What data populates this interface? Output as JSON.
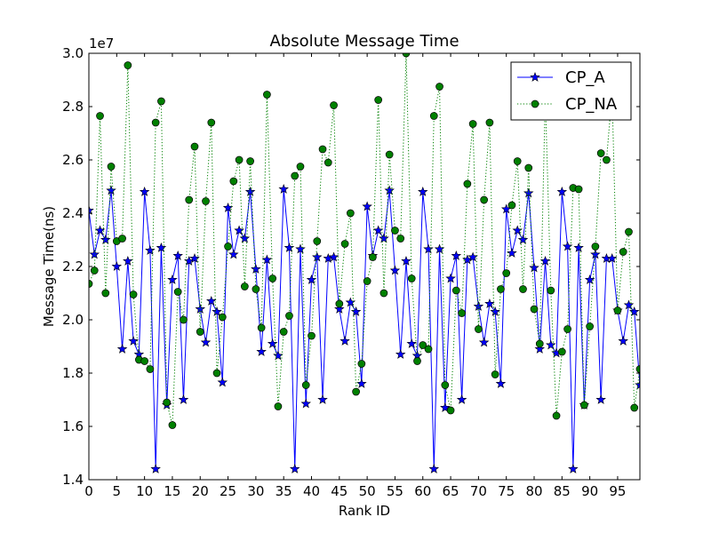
{
  "chart_data": {
    "type": "line",
    "title": "Absolute Message Time",
    "xlabel": "Rank ID",
    "ylabel": "Message Time(ns)",
    "y_offset_label": "1e7",
    "xlim": [
      0,
      99
    ],
    "ylim": [
      1.4,
      3.0
    ],
    "x_ticks": [
      0,
      5,
      10,
      15,
      20,
      25,
      30,
      35,
      40,
      45,
      50,
      55,
      60,
      65,
      70,
      75,
      80,
      85,
      90,
      95
    ],
    "x_tick_labels": [
      "0",
      "5",
      "10",
      "15",
      "20",
      "25",
      "30",
      "35",
      "40",
      "45",
      "50",
      "55",
      "60",
      "65",
      "70",
      "75",
      "80",
      "85",
      "90",
      "95"
    ],
    "y_ticks": [
      1.4,
      1.6,
      1.8,
      2.0,
      2.2,
      2.4,
      2.6,
      2.8,
      3.0
    ],
    "y_tick_labels": [
      "1.4",
      "1.6",
      "1.8",
      "2.0",
      "2.2",
      "2.4",
      "2.6",
      "2.8",
      "3.0"
    ],
    "grid": false,
    "legend_position": "top-right",
    "x": [
      0,
      1,
      2,
      3,
      4,
      5,
      6,
      7,
      8,
      9,
      10,
      11,
      12,
      13,
      14,
      15,
      16,
      17,
      18,
      19,
      20,
      21,
      22,
      23,
      24,
      25,
      26,
      27,
      28,
      29,
      30,
      31,
      32,
      33,
      34,
      35,
      36,
      37,
      38,
      39,
      40,
      41,
      42,
      43,
      44,
      45,
      46,
      47,
      48,
      49,
      50,
      51,
      52,
      53,
      54,
      55,
      56,
      57,
      58,
      59,
      60,
      61,
      62,
      63,
      64,
      65,
      66,
      67,
      68,
      69,
      70,
      71,
      72,
      73,
      74,
      75,
      76,
      77,
      78,
      79,
      80,
      81,
      82,
      83,
      84,
      85,
      86,
      87,
      88,
      89,
      90,
      91,
      92,
      93,
      94,
      95,
      96,
      97,
      98,
      99
    ],
    "series": [
      {
        "name": "CP_A",
        "color": "#0000ff",
        "line_style": "solid",
        "marker": "star",
        "values": [
          2.41,
          2.245,
          2.335,
          2.3,
          2.485,
          2.2,
          1.89,
          2.22,
          1.92,
          1.87,
          2.48,
          2.26,
          1.44,
          2.27,
          1.68,
          2.15,
          2.24,
          1.7,
          2.22,
          2.23,
          2.04,
          1.915,
          2.07,
          2.03,
          1.765,
          2.42,
          2.245,
          2.335,
          2.305,
          2.48,
          2.19,
          1.88,
          2.225,
          1.91,
          1.865,
          2.49,
          2.27,
          1.44,
          2.265,
          1.685,
          2.15,
          2.235,
          1.7,
          2.23,
          2.235,
          2.04,
          1.92,
          2.065,
          2.03,
          1.76,
          2.425,
          2.24,
          2.335,
          2.305,
          2.485,
          2.185,
          1.87,
          2.22,
          1.91,
          1.865,
          2.48,
          2.265,
          1.44,
          2.265,
          1.67,
          2.155,
          2.24,
          1.7,
          2.225,
          2.235,
          2.05,
          1.915,
          2.06,
          2.03,
          1.76,
          2.415,
          2.25,
          2.335,
          2.3,
          2.475,
          2.195,
          1.89,
          2.22,
          1.905,
          1.875,
          2.48,
          2.275,
          1.44,
          2.27,
          1.68,
          2.15,
          2.245,
          1.7,
          2.23,
          2.23,
          2.035,
          1.92,
          2.055,
          2.03,
          1.755
        ]
      },
      {
        "name": "CP_NA",
        "color": "#008000",
        "line_style": "dotted",
        "marker": "circle",
        "values": [
          2.135,
          2.185,
          2.765,
          2.1,
          2.575,
          2.295,
          2.305,
          2.955,
          2.095,
          1.85,
          1.845,
          1.815,
          2.74,
          2.82,
          1.69,
          1.605,
          2.105,
          2.0,
          2.45,
          2.65,
          1.955,
          2.445,
          2.74,
          1.8,
          2.01,
          2.275,
          2.52,
          2.6,
          2.125,
          2.595,
          2.115,
          1.97,
          2.845,
          2.155,
          1.675,
          1.955,
          2.015,
          2.54,
          2.575,
          1.755,
          1.94,
          2.295,
          2.64,
          2.59,
          2.805,
          2.06,
          2.285,
          2.4,
          1.73,
          1.835,
          2.145,
          2.235,
          2.825,
          2.1,
          2.62,
          2.335,
          2.305,
          3.0,
          2.155,
          1.845,
          1.905,
          1.89,
          2.765,
          2.875,
          1.755,
          1.66,
          2.11,
          2.025,
          2.51,
          2.735,
          1.965,
          2.45,
          2.74,
          1.795,
          2.115,
          2.175,
          2.43,
          2.595,
          2.115,
          2.57,
          2.04,
          1.91,
          2.84,
          2.11,
          1.64,
          1.88,
          1.965,
          2.495,
          2.49,
          1.68,
          1.975,
          2.275,
          2.625,
          2.6,
          2.85,
          2.035,
          2.255,
          2.33,
          1.67,
          1.815
        ]
      }
    ]
  }
}
